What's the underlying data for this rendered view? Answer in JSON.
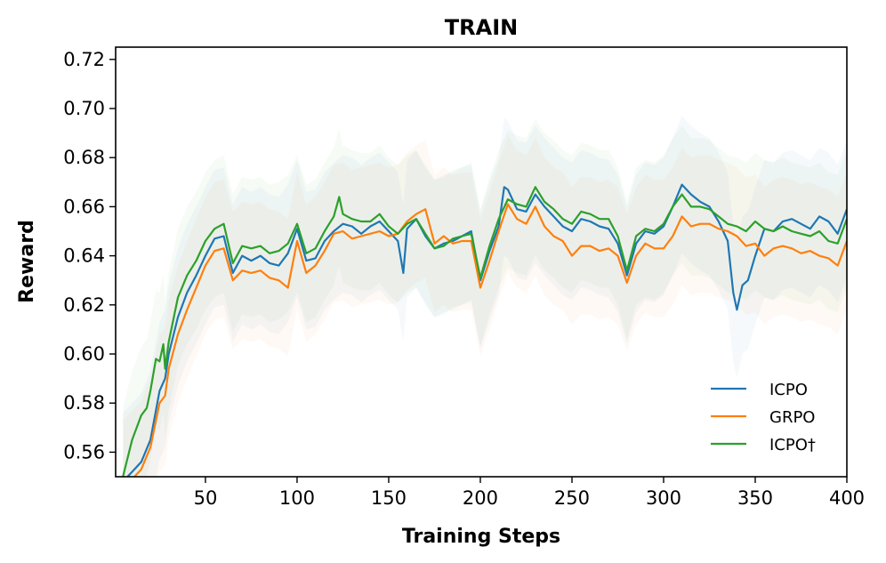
{
  "chart_data": {
    "type": "line",
    "title": "TRAIN",
    "xlabel": "Training Steps",
    "ylabel": "Reward",
    "xlim": [
      1,
      400
    ],
    "ylim": [
      0.55,
      0.725
    ],
    "x_ticks": [
      50,
      100,
      150,
      200,
      250,
      300,
      350,
      400
    ],
    "y_ticks": [
      0.56,
      0.58,
      0.6,
      0.62,
      0.64,
      0.66,
      0.68,
      0.7,
      0.72
    ],
    "x_tick_labels": [
      "50",
      "100",
      "150",
      "200",
      "250",
      "300",
      "350",
      "400"
    ],
    "y_tick_labels": [
      "0.56",
      "0.58",
      "0.60",
      "0.62",
      "0.64",
      "0.66",
      "0.68",
      "0.70",
      "0.72"
    ],
    "legend_position": "lower-right",
    "grid": false,
    "series": [
      {
        "name": "ICPO",
        "color": "#1f77b4",
        "points": [
          [
            5,
            0.548
          ],
          [
            10,
            0.552
          ],
          [
            15,
            0.556
          ],
          [
            20,
            0.565
          ],
          [
            25,
            0.585
          ],
          [
            28,
            0.59
          ],
          [
            30,
            0.6
          ],
          [
            35,
            0.615
          ],
          [
            40,
            0.625
          ],
          [
            45,
            0.632
          ],
          [
            50,
            0.64
          ],
          [
            55,
            0.647
          ],
          [
            60,
            0.648
          ],
          [
            65,
            0.633
          ],
          [
            70,
            0.64
          ],
          [
            75,
            0.638
          ],
          [
            80,
            0.64
          ],
          [
            85,
            0.637
          ],
          [
            90,
            0.636
          ],
          [
            95,
            0.641
          ],
          [
            100,
            0.651
          ],
          [
            105,
            0.638
          ],
          [
            110,
            0.639
          ],
          [
            115,
            0.646
          ],
          [
            120,
            0.65
          ],
          [
            125,
            0.653
          ],
          [
            130,
            0.652
          ],
          [
            135,
            0.649
          ],
          [
            140,
            0.652
          ],
          [
            145,
            0.654
          ],
          [
            150,
            0.65
          ],
          [
            155,
            0.646
          ],
          [
            158,
            0.633
          ],
          [
            160,
            0.651
          ],
          [
            165,
            0.655
          ],
          [
            170,
            0.648
          ],
          [
            175,
            0.643
          ],
          [
            180,
            0.645
          ],
          [
            185,
            0.646
          ],
          [
            190,
            0.648
          ],
          [
            195,
            0.65
          ],
          [
            200,
            0.63
          ],
          [
            205,
            0.642
          ],
          [
            210,
            0.652
          ],
          [
            213,
            0.668
          ],
          [
            215,
            0.667
          ],
          [
            220,
            0.659
          ],
          [
            225,
            0.658
          ],
          [
            230,
            0.665
          ],
          [
            235,
            0.66
          ],
          [
            240,
            0.656
          ],
          [
            245,
            0.652
          ],
          [
            250,
            0.65
          ],
          [
            255,
            0.655
          ],
          [
            260,
            0.654
          ],
          [
            265,
            0.652
          ],
          [
            270,
            0.651
          ],
          [
            275,
            0.645
          ],
          [
            280,
            0.632
          ],
          [
            285,
            0.645
          ],
          [
            290,
            0.65
          ],
          [
            295,
            0.649
          ],
          [
            300,
            0.652
          ],
          [
            305,
            0.66
          ],
          [
            310,
            0.669
          ],
          [
            315,
            0.665
          ],
          [
            320,
            0.662
          ],
          [
            325,
            0.66
          ],
          [
            330,
            0.654
          ],
          [
            335,
            0.646
          ],
          [
            338,
            0.625
          ],
          [
            340,
            0.618
          ],
          [
            343,
            0.628
          ],
          [
            346,
            0.63
          ],
          [
            350,
            0.64
          ],
          [
            355,
            0.651
          ],
          [
            360,
            0.65
          ],
          [
            365,
            0.654
          ],
          [
            370,
            0.655
          ],
          [
            375,
            0.653
          ],
          [
            380,
            0.651
          ],
          [
            385,
            0.656
          ],
          [
            390,
            0.654
          ],
          [
            395,
            0.649
          ],
          [
            400,
            0.659
          ]
        ]
      },
      {
        "name": "GRPO",
        "color": "#ff7f0e",
        "points": [
          [
            5,
            0.545
          ],
          [
            10,
            0.549
          ],
          [
            15,
            0.553
          ],
          [
            20,
            0.562
          ],
          [
            25,
            0.58
          ],
          [
            28,
            0.583
          ],
          [
            30,
            0.594
          ],
          [
            35,
            0.608
          ],
          [
            40,
            0.618
          ],
          [
            45,
            0.627
          ],
          [
            50,
            0.636
          ],
          [
            55,
            0.642
          ],
          [
            60,
            0.643
          ],
          [
            65,
            0.63
          ],
          [
            70,
            0.634
          ],
          [
            75,
            0.633
          ],
          [
            80,
            0.634
          ],
          [
            85,
            0.631
          ],
          [
            90,
            0.63
          ],
          [
            95,
            0.627
          ],
          [
            100,
            0.646
          ],
          [
            105,
            0.633
          ],
          [
            110,
            0.636
          ],
          [
            115,
            0.642
          ],
          [
            120,
            0.649
          ],
          [
            125,
            0.65
          ],
          [
            130,
            0.647
          ],
          [
            135,
            0.648
          ],
          [
            140,
            0.649
          ],
          [
            145,
            0.65
          ],
          [
            150,
            0.648
          ],
          [
            155,
            0.649
          ],
          [
            160,
            0.654
          ],
          [
            165,
            0.657
          ],
          [
            170,
            0.659
          ],
          [
            175,
            0.645
          ],
          [
            180,
            0.648
          ],
          [
            185,
            0.645
          ],
          [
            190,
            0.646
          ],
          [
            195,
            0.646
          ],
          [
            200,
            0.627
          ],
          [
            205,
            0.638
          ],
          [
            210,
            0.65
          ],
          [
            215,
            0.661
          ],
          [
            220,
            0.655
          ],
          [
            225,
            0.653
          ],
          [
            230,
            0.66
          ],
          [
            235,
            0.652
          ],
          [
            240,
            0.648
          ],
          [
            245,
            0.646
          ],
          [
            250,
            0.64
          ],
          [
            255,
            0.644
          ],
          [
            260,
            0.644
          ],
          [
            265,
            0.642
          ],
          [
            270,
            0.643
          ],
          [
            275,
            0.64
          ],
          [
            280,
            0.629
          ],
          [
            285,
            0.64
          ],
          [
            290,
            0.645
          ],
          [
            295,
            0.643
          ],
          [
            300,
            0.643
          ],
          [
            305,
            0.648
          ],
          [
            310,
            0.656
          ],
          [
            315,
            0.652
          ],
          [
            320,
            0.653
          ],
          [
            325,
            0.653
          ],
          [
            330,
            0.651
          ],
          [
            335,
            0.65
          ],
          [
            340,
            0.648
          ],
          [
            345,
            0.644
          ],
          [
            350,
            0.645
          ],
          [
            355,
            0.64
          ],
          [
            360,
            0.643
          ],
          [
            365,
            0.644
          ],
          [
            370,
            0.643
          ],
          [
            375,
            0.641
          ],
          [
            380,
            0.642
          ],
          [
            385,
            0.64
          ],
          [
            390,
            0.639
          ],
          [
            395,
            0.636
          ],
          [
            400,
            0.646
          ]
        ]
      },
      {
        "name": "ICPO†",
        "color": "#2ca02c",
        "points": [
          [
            5,
            0.55
          ],
          [
            10,
            0.565
          ],
          [
            15,
            0.575
          ],
          [
            18,
            0.578
          ],
          [
            20,
            0.585
          ],
          [
            23,
            0.598
          ],
          [
            25,
            0.597
          ],
          [
            27,
            0.604
          ],
          [
            28,
            0.594
          ],
          [
            30,
            0.605
          ],
          [
            35,
            0.623
          ],
          [
            40,
            0.632
          ],
          [
            45,
            0.638
          ],
          [
            50,
            0.646
          ],
          [
            55,
            0.651
          ],
          [
            60,
            0.653
          ],
          [
            65,
            0.637
          ],
          [
            70,
            0.644
          ],
          [
            75,
            0.643
          ],
          [
            80,
            0.644
          ],
          [
            85,
            0.641
          ],
          [
            90,
            0.642
          ],
          [
            95,
            0.645
          ],
          [
            100,
            0.653
          ],
          [
            105,
            0.641
          ],
          [
            110,
            0.643
          ],
          [
            115,
            0.65
          ],
          [
            120,
            0.656
          ],
          [
            123,
            0.664
          ],
          [
            125,
            0.657
          ],
          [
            130,
            0.655
          ],
          [
            135,
            0.654
          ],
          [
            140,
            0.654
          ],
          [
            145,
            0.657
          ],
          [
            150,
            0.652
          ],
          [
            155,
            0.649
          ],
          [
            160,
            0.653
          ],
          [
            165,
            0.655
          ],
          [
            170,
            0.649
          ],
          [
            175,
            0.643
          ],
          [
            180,
            0.644
          ],
          [
            185,
            0.647
          ],
          [
            190,
            0.648
          ],
          [
            195,
            0.649
          ],
          [
            200,
            0.631
          ],
          [
            205,
            0.644
          ],
          [
            210,
            0.655
          ],
          [
            215,
            0.663
          ],
          [
            220,
            0.661
          ],
          [
            225,
            0.66
          ],
          [
            230,
            0.668
          ],
          [
            235,
            0.662
          ],
          [
            240,
            0.659
          ],
          [
            245,
            0.655
          ],
          [
            250,
            0.653
          ],
          [
            255,
            0.658
          ],
          [
            260,
            0.657
          ],
          [
            265,
            0.655
          ],
          [
            270,
            0.655
          ],
          [
            275,
            0.648
          ],
          [
            280,
            0.634
          ],
          [
            285,
            0.648
          ],
          [
            290,
            0.651
          ],
          [
            295,
            0.65
          ],
          [
            300,
            0.653
          ],
          [
            305,
            0.66
          ],
          [
            310,
            0.665
          ],
          [
            315,
            0.66
          ],
          [
            320,
            0.66
          ],
          [
            325,
            0.659
          ],
          [
            330,
            0.656
          ],
          [
            335,
            0.653
          ],
          [
            340,
            0.652
          ],
          [
            345,
            0.65
          ],
          [
            350,
            0.654
          ],
          [
            355,
            0.651
          ],
          [
            360,
            0.65
          ],
          [
            365,
            0.652
          ],
          [
            370,
            0.65
          ],
          [
            375,
            0.649
          ],
          [
            380,
            0.648
          ],
          [
            385,
            0.65
          ],
          [
            390,
            0.646
          ],
          [
            395,
            0.645
          ],
          [
            400,
            0.655
          ]
        ]
      }
    ]
  }
}
